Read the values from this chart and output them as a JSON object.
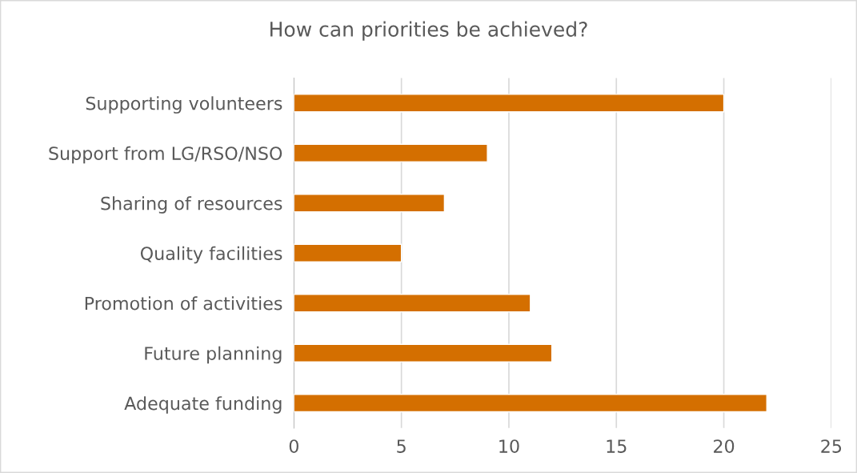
{
  "chart_data": {
    "type": "bar",
    "title": "How can priorities be achieved?",
    "orientation": "horizontal",
    "categories": [
      "Supporting volunteers",
      "Support from LG/RSO/NSO",
      "Sharing of resources",
      "Quality facilities",
      "Promotion of activities",
      "Future planning",
      "Adequate funding"
    ],
    "values": [
      20,
      9,
      7,
      5,
      11,
      12,
      22
    ],
    "color": "#d46f00",
    "xlim": [
      0,
      25
    ],
    "xticks": [
      0,
      5,
      10,
      15,
      20,
      25
    ],
    "grid": "x",
    "legend": false
  }
}
